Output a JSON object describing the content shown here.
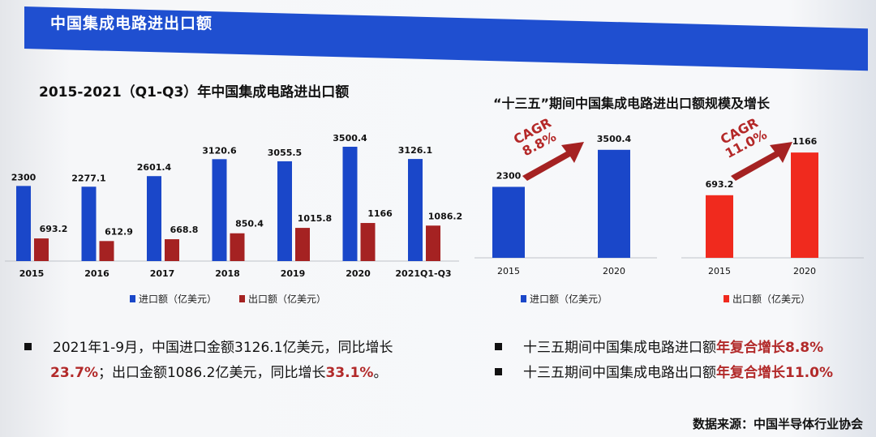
{
  "header": {
    "title": "中国集成电路进出口额"
  },
  "left_chart_title": "2015-2021（Q1-Q3）年中国集成电路进出口额",
  "right_chart_title": "“十三五”期间中国集成电路进出口额规模及增长",
  "chart_data": [
    {
      "type": "bar",
      "title": "2015-2021（Q1-Q3）年中国集成电路进出口额",
      "categories": [
        "2015",
        "2016",
        "2017",
        "2018",
        "2019",
        "2020",
        "2021Q1-Q3"
      ],
      "series": [
        {
          "name": "进口额（亿美元）",
          "color": "#1a47c9",
          "values": [
            2300,
            2277.1,
            2601.4,
            3120.6,
            3055.5,
            3500.4,
            3126.1
          ]
        },
        {
          "name": "出口额（亿美元）",
          "color": "#a52222",
          "values": [
            693.2,
            612.9,
            668.8,
            850.4,
            1015.8,
            1166,
            1086.2
          ]
        }
      ],
      "value_labels": {
        "import": [
          "2300",
          "2277.1",
          "2601.4",
          "3120.6",
          "3055.5",
          "3500.4",
          "3126.1"
        ],
        "export": [
          "693.2",
          "612.9",
          "668.8",
          "850.4",
          "1015.8",
          "1166",
          "1086.2"
        ]
      },
      "ylim": [
        0,
        3600
      ],
      "grid": false,
      "legend": "bottom"
    },
    {
      "type": "bar",
      "categories": [
        "2015",
        "2020"
      ],
      "series": [
        {
          "name": "进口额（亿美元）",
          "color": "#1a47c9",
          "values": [
            2300,
            3500.4
          ]
        }
      ],
      "value_labels": [
        "2300",
        "3500.4"
      ],
      "annotation": {
        "label": "CAGR",
        "value": "8.8%"
      },
      "ylim": [
        0,
        3600
      ],
      "legend": "bottom"
    },
    {
      "type": "bar",
      "categories": [
        "2015",
        "2020"
      ],
      "series": [
        {
          "name": "出口额（亿美元）",
          "color": "#f02a1e",
          "values": [
            693.2,
            1166
          ]
        }
      ],
      "value_labels": [
        "693.2",
        "1166"
      ],
      "annotation": {
        "label": "CAGR",
        "value": "11.0%"
      },
      "ylim": [
        0,
        1230
      ],
      "legend": "bottom"
    }
  ],
  "left_legend": {
    "import": "进口额（亿美元）",
    "export": "出口额（亿美元）"
  },
  "mid_legend": "进口额（亿美元）",
  "right_legend": "出口额（亿美元）",
  "cagr": {
    "label": "CAGR",
    "import_value": "8.8%",
    "export_value": "11.0%"
  },
  "notes_left": {
    "line1": "2021年1-9月，中国进口金额3126.1亿美元，同比增长",
    "line2_red1": "23.7%",
    "line2_mid": "；出口金额1086.2亿美元，同比增长",
    "line2_red2": "33.1%",
    "line2_end": "。"
  },
  "notes_right": [
    {
      "text": "十三五期间中国集成电路进口额",
      "red": "年复合增长8.8%"
    },
    {
      "text": "十三五期间中国集成电路出口额",
      "red": "年复合增长11.0%"
    }
  ],
  "source": "数据来源：中国半导体行业协会",
  "colors": {
    "header": "#1f4fd0",
    "import": "#1a47c9",
    "export": "#a52222",
    "export_bright": "#f02a1e",
    "accent_red": "#b22a2a"
  }
}
